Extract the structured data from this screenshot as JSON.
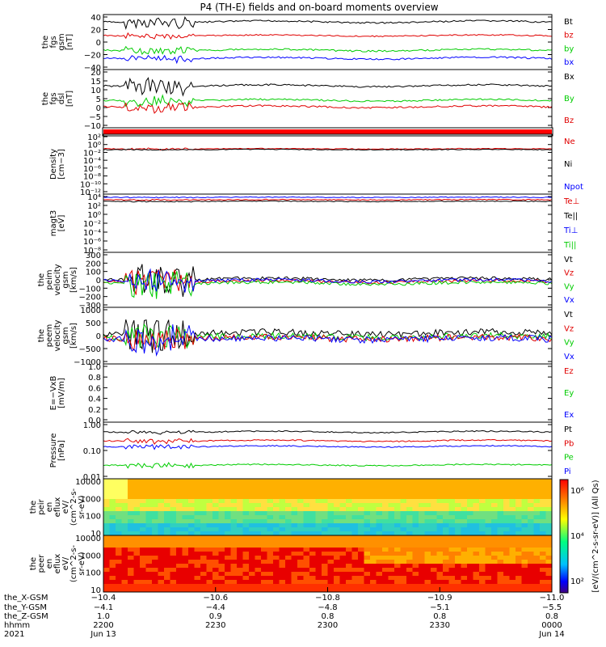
{
  "title": "P4 (TH-E) fields and on-board moments overview",
  "colors": {
    "black": "#000000",
    "red": "#e00000",
    "green": "#00cc00",
    "blue": "#0000ff"
  },
  "panels": [
    {
      "id": "fgs_gsm",
      "ylabel": [
        "the",
        "fgs",
        "gsm",
        "[nT]"
      ],
      "ticks": [
        "40",
        "20",
        "0",
        "−20",
        "−40"
      ],
      "legend": [
        {
          "t": "Bt",
          "c": "black"
        },
        {
          "t": "bz",
          "c": "red"
        },
        {
          "t": "by",
          "c": "green"
        },
        {
          "t": "bx",
          "c": "blue"
        }
      ]
    },
    {
      "id": "fgs_dsl",
      "ylabel": [
        "the",
        "fgs",
        "dsl",
        "[nT]"
      ],
      "ticks": [
        "20",
        "15",
        "10",
        "5",
        "0",
        "−5",
        "−10"
      ],
      "legend": [
        {
          "t": "Bx",
          "c": "black"
        },
        {
          "t": "By",
          "c": "green"
        },
        {
          "t": "Bz",
          "c": "red"
        }
      ]
    },
    {
      "id": "density",
      "ylabel": [
        "Density",
        "[cm−3]"
      ],
      "ticks": [
        "10²",
        "10⁰",
        "10⁻²",
        "10⁻⁴",
        "10⁻⁶",
        "10⁻⁸",
        "10⁻¹⁰",
        "10⁻¹²"
      ],
      "legend": [
        {
          "t": "Ne",
          "c": "red"
        },
        {
          "t": "Ni",
          "c": "black"
        },
        {
          "t": "Npot",
          "c": "blue"
        }
      ]
    },
    {
      "id": "magt3",
      "ylabel": [
        "magt3",
        "[eV]"
      ],
      "ticks": [
        "10⁴",
        "10²",
        "10⁰",
        "10⁻²",
        "10⁻⁴",
        "10⁻⁶",
        "10⁻⁸"
      ],
      "legend": [
        {
          "t": "Te⊥",
          "c": "red"
        },
        {
          "t": "Te||",
          "c": "black"
        },
        {
          "t": "Ti⊥",
          "c": "blue"
        },
        {
          "t": "Ti||",
          "c": "green"
        }
      ]
    },
    {
      "id": "peim_vel",
      "ylabel": [
        "the",
        "peim",
        "velocity",
        "gsm",
        "[km/s]"
      ],
      "ticks": [
        "300",
        "200",
        "100",
        "0",
        "−100",
        "−200",
        "−300"
      ],
      "legend": [
        {
          "t": "Vt",
          "c": "black"
        },
        {
          "t": "Vz",
          "c": "red"
        },
        {
          "t": "Vy",
          "c": "green"
        },
        {
          "t": "Vx",
          "c": "blue"
        }
      ]
    },
    {
      "id": "peem_vel",
      "ylabel": [
        "the",
        "peem",
        "velocity",
        "gsm",
        "[km/s]"
      ],
      "ticks": [
        "1000",
        "500",
        "0",
        "−500",
        "−1000"
      ],
      "legend": [
        {
          "t": "Vt",
          "c": "black"
        },
        {
          "t": "Vz",
          "c": "red"
        },
        {
          "t": "Vy",
          "c": "green"
        },
        {
          "t": "Vx",
          "c": "blue"
        }
      ]
    },
    {
      "id": "efield",
      "ylabel": [
        "E=−VxB",
        "[mV/m]"
      ],
      "ticks": [
        "1.0",
        "0.8",
        "0.6",
        "0.4",
        "0.2",
        "0.0"
      ],
      "legend": [
        {
          "t": "Ez",
          "c": "red"
        },
        {
          "t": "Ey",
          "c": "green"
        },
        {
          "t": "Ex",
          "c": "blue"
        }
      ]
    },
    {
      "id": "pressure",
      "ylabel": [
        "Pressure",
        "[nPa]"
      ],
      "ticks": [
        "1.00",
        "0.10",
        "0.01"
      ],
      "legend": [
        {
          "t": "Pt",
          "c": "black"
        },
        {
          "t": "Pb",
          "c": "red"
        },
        {
          "t": "Pe",
          "c": "green"
        },
        {
          "t": "Pi",
          "c": "blue"
        }
      ]
    },
    {
      "id": "peir",
      "ylabel": [
        "the",
        "peir",
        "en",
        "eflux",
        "eV/",
        "(cm^2-s-",
        "sr-eV)"
      ],
      "ticks": [
        "10000",
        "1000",
        "100",
        "10"
      ]
    },
    {
      "id": "peer",
      "ylabel": [
        "the",
        "peer",
        "en",
        "eflux",
        "eV/",
        "(cm^2-s-",
        "sr-eV)"
      ],
      "ticks": [
        "10000",
        "1000",
        "100",
        "10"
      ]
    }
  ],
  "colorbar": {
    "label": "[eV/(cm^2-s-sr-eV)] (All Qs)",
    "ticks": [
      "10⁶",
      "10⁴",
      "10²"
    ]
  },
  "xaxis": {
    "row_labels": [
      "the_X-GSM",
      "the_Y-GSM",
      "the_Z-GSM",
      "hhmm",
      "2021"
    ],
    "columns": [
      [
        "−10.4",
        "−4.1",
        "1.0",
        "2200",
        "Jun 13"
      ],
      [
        "−10.6",
        "−4.4",
        "0.9",
        "2230",
        ""
      ],
      [
        "−10.8",
        "−4.8",
        "0.8",
        "2300",
        ""
      ],
      [
        "−10.9",
        "−5.1",
        "0.8",
        "2330",
        ""
      ],
      [
        "−11.0",
        "−5.5",
        "0.8",
        "0000",
        "Jun 14"
      ]
    ]
  },
  "chart_data": {
    "type": "line",
    "title": "P4 (TH-E) fields and on-board moments overview",
    "x_range": [
      "2021-06-13 22:00",
      "2021-06-14 00:00"
    ],
    "series": [
      {
        "panel": "fgs_gsm",
        "name": "Bt",
        "approx_level": 26
      },
      {
        "panel": "fgs_gsm",
        "name": "bz",
        "approx_level": 14
      },
      {
        "panel": "fgs_gsm",
        "name": "by",
        "approx_level": -5
      },
      {
        "panel": "fgs_gsm",
        "name": "bx",
        "approx_level": -16
      },
      {
        "panel": "fgs_dsl",
        "name": "Bx",
        "approx_level": 12
      },
      {
        "panel": "fgs_dsl",
        "name": "By",
        "approx_level": 4
      },
      {
        "panel": "fgs_dsl",
        "name": "Bz",
        "approx_level": 1
      },
      {
        "panel": "density",
        "name": "Ne",
        "approx_level": 0.5
      },
      {
        "panel": "magt3",
        "name": "Te⊥",
        "approx_level": 3000
      },
      {
        "panel": "pressure",
        "name": "Pt",
        "approx_level": 0.45
      },
      {
        "panel": "pressure",
        "name": "Pb",
        "approx_level": 0.2
      },
      {
        "panel": "pressure",
        "name": "Pi",
        "approx_level": 0.15
      },
      {
        "panel": "pressure",
        "name": "Pe",
        "approx_level": 0.03
      }
    ]
  }
}
